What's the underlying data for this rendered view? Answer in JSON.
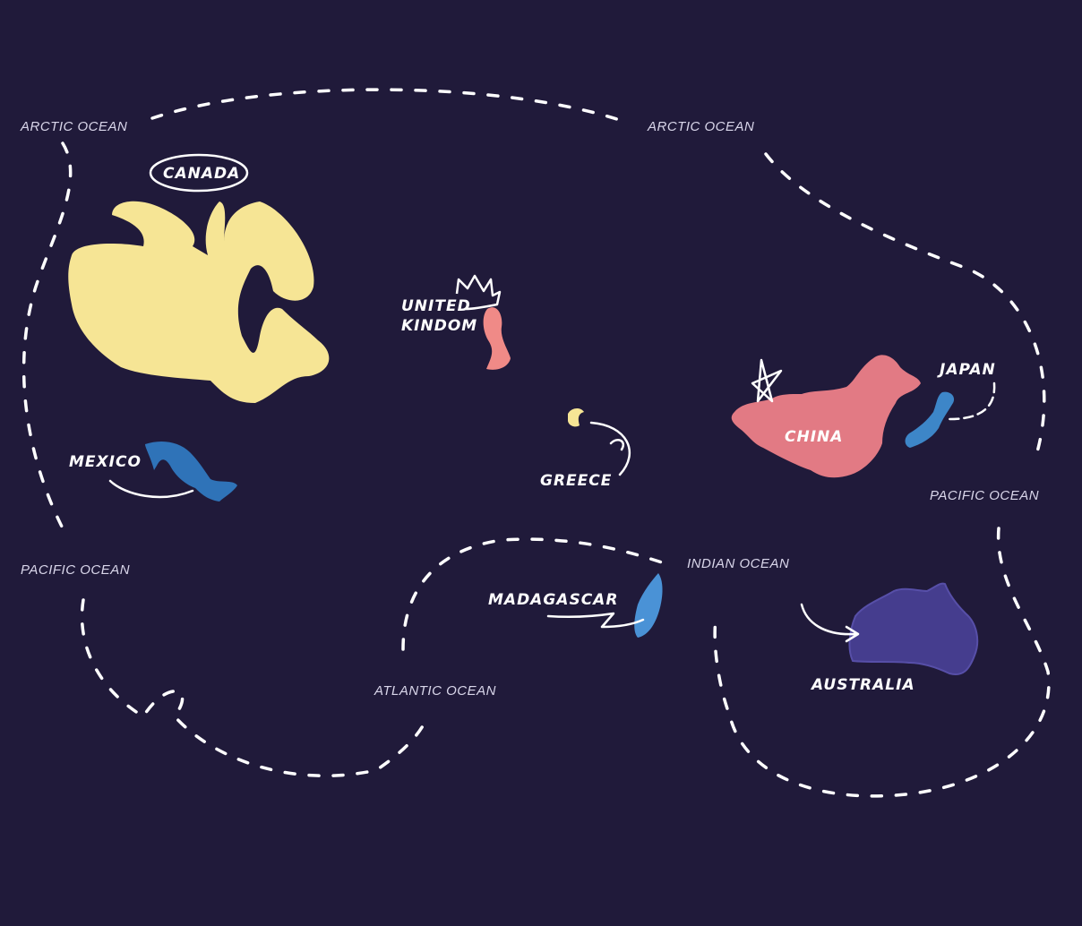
{
  "colors": {
    "background": "#201a3a",
    "route": "#ffffff",
    "canada": "#f6e595",
    "mexico": "#2f73b8",
    "united_kingdom": "#f08a87",
    "greece": "#f6e595",
    "china": "#e27a84",
    "japan": "#3d86c8",
    "madagascar": "#4a92d6",
    "australia": "#453d8e"
  },
  "oceans": {
    "arctic_left": "ARCTIC OCEAN",
    "arctic_right": "ARCTIC OCEAN",
    "pacific_left": "PACIFIC OCEAN",
    "pacific_right": "PACIFIC OCEAN",
    "indian": "INDIAN OCEAN",
    "atlantic": "ATLANTIC OCEAN"
  },
  "countries": {
    "canada": "CANADA",
    "mexico": "MEXICO",
    "uk_line1": "UNITED",
    "uk_line2": "KINDOM",
    "greece": "GREECE",
    "china": "CHINA",
    "japan": "JAPAN",
    "madagascar": "MADAGASCAR",
    "australia": "AUSTRALIA"
  },
  "icons": {
    "canada_circle": "hand-drawn-circle-icon",
    "uk_crown": "crown-icon",
    "china_star": "star-icon"
  }
}
